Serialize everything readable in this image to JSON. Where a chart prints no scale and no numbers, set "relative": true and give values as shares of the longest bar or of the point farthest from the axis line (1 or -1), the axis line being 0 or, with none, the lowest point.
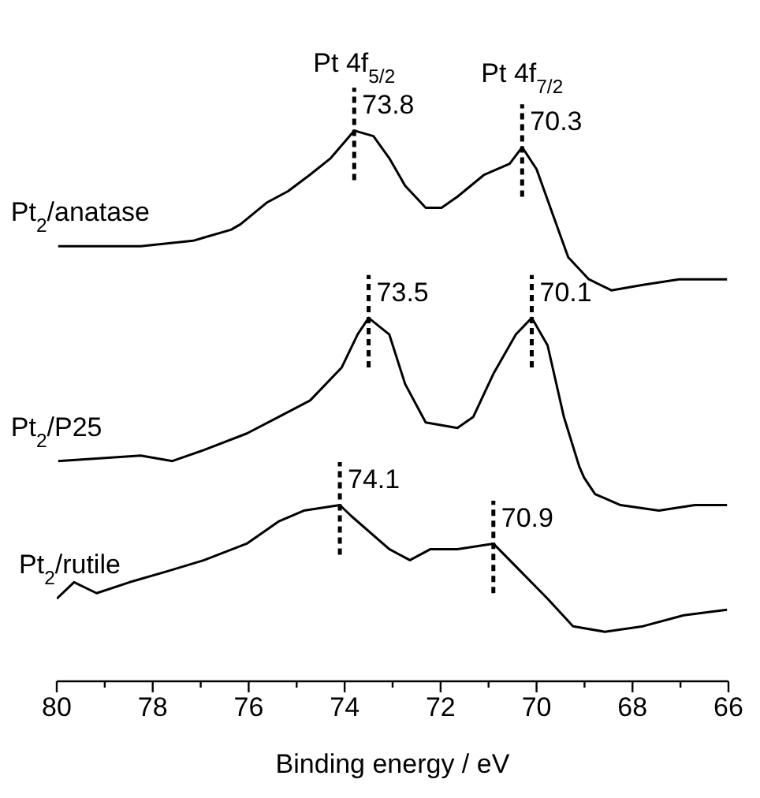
{
  "chart_data": {
    "type": "line",
    "relative": true,
    "xlabel": "Binding energy / eV",
    "xlim": [
      80,
      66
    ],
    "xticks": [
      80,
      {
        "value": 79,
        "label": null
      },
      78,
      {
        "value": 77,
        "label": null
      },
      76,
      {
        "value": 75,
        "label": null
      },
      74,
      {
        "value": 73,
        "label": null
      },
      72,
      {
        "value": 71,
        "label": null
      },
      70,
      {
        "value": 69,
        "label": null
      },
      68,
      {
        "value": 67,
        "label": null
      },
      66
    ],
    "series": [
      {
        "name": "Pt$_{2}$/anatase",
        "color": "#000000",
        "x": [
          79.97,
          78.25,
          77.16,
          76.37,
          76.17,
          75.61,
          75.18,
          74.72,
          74.29,
          73.8,
          73.4,
          73.07,
          72.74,
          72.31,
          71.98,
          71.65,
          71.09,
          70.56,
          70.3,
          70.0,
          69.67,
          69.34,
          68.91,
          68.44,
          67.78,
          67.03,
          66.37,
          66.03
        ],
        "values": [
          0.79,
          0.79,
          0.8,
          0.82,
          0.83,
          0.87,
          0.89,
          0.92,
          0.95,
          1.0,
          0.99,
          0.95,
          0.9,
          0.86,
          0.86,
          0.88,
          0.92,
          0.94,
          0.97,
          0.93,
          0.85,
          0.77,
          0.73,
          0.71,
          0.72,
          0.73,
          0.73,
          0.73
        ]
      },
      {
        "name": "Pt$_{2}$/P25",
        "color": "#000000",
        "x": [
          79.97,
          78.25,
          77.59,
          76.93,
          76.04,
          75.38,
          74.72,
          74.06,
          73.73,
          73.5,
          73.07,
          72.74,
          72.31,
          71.65,
          71.32,
          70.89,
          70.43,
          70.1,
          69.77,
          69.43,
          69.11,
          69.01,
          68.78,
          68.25,
          67.45,
          66.7,
          66.03
        ],
        "values": [
          0.4,
          0.41,
          0.4,
          0.42,
          0.45,
          0.48,
          0.51,
          0.57,
          0.63,
          0.66,
          0.63,
          0.54,
          0.47,
          0.46,
          0.48,
          0.56,
          0.63,
          0.66,
          0.61,
          0.48,
          0.39,
          0.37,
          0.34,
          0.32,
          0.31,
          0.32,
          0.32
        ]
      },
      {
        "name": "Pt$_{2}$/rutile",
        "color": "#000000",
        "x": [
          80.0,
          79.64,
          79.17,
          78.48,
          77.69,
          76.93,
          76.04,
          75.38,
          74.85,
          74.1,
          73.86,
          73.07,
          72.64,
          72.21,
          71.65,
          70.9,
          70.56,
          69.77,
          69.24,
          68.58,
          67.78,
          66.93,
          66.03
        ],
        "values": [
          0.15,
          0.18,
          0.16,
          0.18,
          0.2,
          0.22,
          0.25,
          0.29,
          0.31,
          0.32,
          0.3,
          0.24,
          0.22,
          0.24,
          0.24,
          0.25,
          0.22,
          0.15,
          0.1,
          0.09,
          0.1,
          0.12,
          0.13
        ]
      }
    ],
    "annotations": [
      "Pt 4f$_{5/2}$",
      "Pt 4f$_{7/2}$",
      {
        "text": "73.8",
        "x": 73.8,
        "y": 1.0
      },
      {
        "text": "70.3",
        "x": 70.3,
        "y": 0.97
      },
      {
        "text": "73.5",
        "x": 73.5,
        "y": 0.66
      },
      {
        "text": "70.1",
        "x": 70.1,
        "y": 0.66
      },
      {
        "text": "74.1",
        "x": 74.1,
        "y": 0.32
      },
      {
        "text": "70.9",
        "x": 70.9,
        "y": 0.25
      }
    ]
  }
}
